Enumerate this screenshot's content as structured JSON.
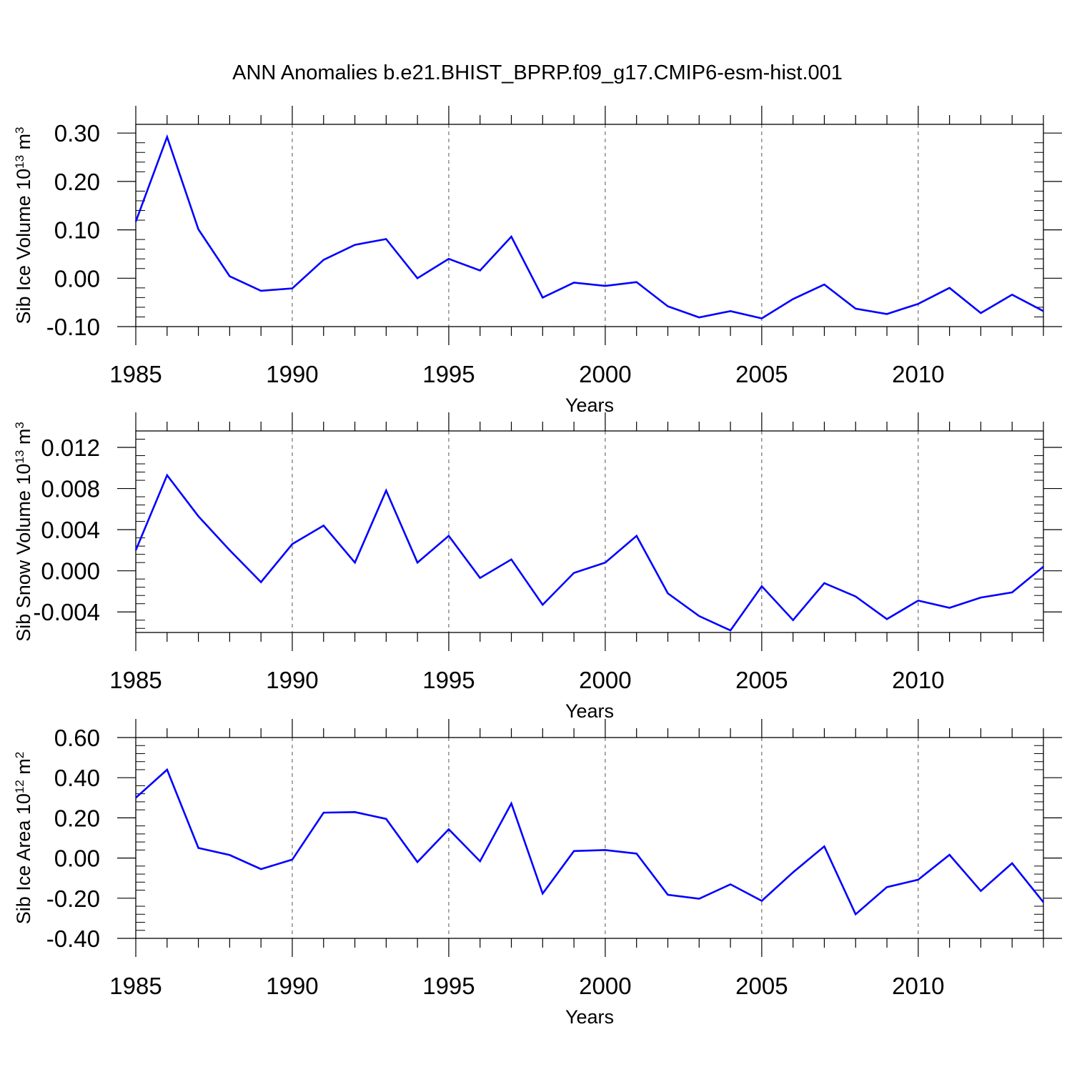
{
  "figure": {
    "title": "ANN Anomalies b.e21.BHIST_BPRP.f09_g17.CMIP6-esm-hist.001"
  },
  "chart_data": [
    {
      "type": "line",
      "title": "",
      "xlabel": "Years",
      "ylabel": {
        "base": "Sib Ice Volume 10",
        "sup": "13",
        "unit": " m",
        "unit_sup": "3"
      },
      "x": [
        1985,
        1986,
        1987,
        1988,
        1989,
        1990,
        1991,
        1992,
        1993,
        1994,
        1995,
        1996,
        1997,
        1998,
        1999,
        2000,
        2001,
        2002,
        2003,
        2004,
        2005,
        2006,
        2007,
        2008,
        2009,
        2010,
        2011,
        2012,
        2013,
        2014
      ],
      "xlim": [
        1985,
        2014
      ],
      "xticks": [
        1985,
        1990,
        1995,
        2000,
        2005,
        2010
      ],
      "xtick_labels": [
        "1985",
        "1990",
        "1995",
        "2000",
        "2005",
        "2010"
      ],
      "ylim": [
        -0.1,
        0.318
      ],
      "yticks": [
        -0.1,
        0.0,
        0.1,
        0.2,
        0.3
      ],
      "ytick_labels": [
        "-0.10",
        "0.00",
        "0.10",
        "0.20",
        "0.30"
      ],
      "grid": "dashed vertical lines at major x ticks",
      "series": [
        {
          "color": "#0000ff",
          "values": [
            0.117,
            0.292,
            0.101,
            0.004,
            -0.026,
            -0.021,
            0.038,
            0.069,
            0.081,
            0.0,
            0.04,
            0.016,
            0.086,
            -0.04,
            -0.009,
            -0.016,
            -0.008,
            -0.058,
            -0.081,
            -0.068,
            -0.083,
            -0.043,
            -0.013,
            -0.063,
            -0.074,
            -0.053,
            -0.02,
            -0.072,
            -0.034,
            -0.068
          ]
        }
      ]
    },
    {
      "type": "line",
      "title": "",
      "xlabel": "Years",
      "ylabel": {
        "base": "Sib Snow Volume 10",
        "sup": "13",
        "unit": " m",
        "unit_sup": "3"
      },
      "x": [
        1985,
        1986,
        1987,
        1988,
        1989,
        1990,
        1991,
        1992,
        1993,
        1994,
        1995,
        1996,
        1997,
        1998,
        1999,
        2000,
        2001,
        2002,
        2003,
        2004,
        2005,
        2006,
        2007,
        2008,
        2009,
        2010,
        2011,
        2012,
        2013,
        2014
      ],
      "xlim": [
        1985,
        2014
      ],
      "xticks": [
        1985,
        1990,
        1995,
        2000,
        2005,
        2010
      ],
      "xtick_labels": [
        "1985",
        "1990",
        "1995",
        "2000",
        "2005",
        "2010"
      ],
      "ylim": [
        -0.006,
        0.0136
      ],
      "yticks": [
        -0.004,
        0.0,
        0.004,
        0.008,
        0.012
      ],
      "ytick_labels": [
        "-0.004",
        "0.000",
        "0.004",
        "0.008",
        "0.012"
      ],
      "grid": "dashed vertical lines at major x ticks",
      "series": [
        {
          "color": "#0000ff",
          "values": [
            0.002,
            0.0093,
            0.0053,
            0.002,
            -0.0011,
            0.0026,
            0.0044,
            0.0008,
            0.0078,
            0.0008,
            0.0034,
            -0.0007,
            0.0011,
            -0.0033,
            -0.0002,
            0.0008,
            0.0034,
            -0.0022,
            -0.0044,
            -0.0058,
            -0.0015,
            -0.0048,
            -0.0012,
            -0.0025,
            -0.0047,
            -0.0029,
            -0.0036,
            -0.0026,
            -0.0021,
            0.0004
          ]
        }
      ]
    },
    {
      "type": "line",
      "title": "",
      "xlabel": "Years",
      "ylabel": {
        "base": "Sib Ice Area 10",
        "sup": "12",
        "unit": " m",
        "unit_sup": "2"
      },
      "x": [
        1985,
        1986,
        1987,
        1988,
        1989,
        1990,
        1991,
        1992,
        1993,
        1994,
        1995,
        1996,
        1997,
        1998,
        1999,
        2000,
        2001,
        2002,
        2003,
        2004,
        2005,
        2006,
        2007,
        2008,
        2009,
        2010,
        2011,
        2012,
        2013,
        2014
      ],
      "xlim": [
        1985,
        2014
      ],
      "xticks": [
        1985,
        1990,
        1995,
        2000,
        2005,
        2010
      ],
      "xtick_labels": [
        "1985",
        "1990",
        "1995",
        "2000",
        "2005",
        "2010"
      ],
      "ylim": [
        -0.4,
        0.6
      ],
      "yticks": [
        -0.4,
        -0.2,
        0.0,
        0.2,
        0.4,
        0.6
      ],
      "ytick_labels": [
        "-0.40",
        "-0.20",
        "0.00",
        "0.20",
        "0.40",
        "0.60"
      ],
      "grid": "dashed vertical lines at major x ticks",
      "series": [
        {
          "color": "#0000ff",
          "values": [
            0.3,
            0.44,
            0.05,
            0.015,
            -0.055,
            -0.008,
            0.226,
            0.229,
            0.195,
            -0.02,
            0.143,
            -0.016,
            0.272,
            -0.177,
            0.035,
            0.04,
            0.022,
            -0.183,
            -0.203,
            -0.131,
            -0.213,
            -0.071,
            0.058,
            -0.28,
            -0.145,
            -0.108,
            0.016,
            -0.164,
            -0.026,
            -0.22
          ]
        }
      ]
    }
  ]
}
